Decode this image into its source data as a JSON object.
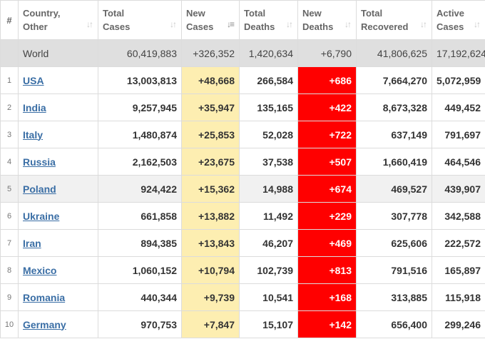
{
  "table": {
    "headers": {
      "num": "#",
      "country": [
        "Country,",
        "Other"
      ],
      "total_cases": [
        "Total",
        "Cases"
      ],
      "new_cases": [
        "New",
        "Cases"
      ],
      "total_deaths": [
        "Total",
        "Deaths"
      ],
      "new_deaths": [
        "New",
        "Deaths"
      ],
      "total_recovered": [
        "Total",
        "Recovered"
      ],
      "active_cases": [
        "Active",
        "Cases"
      ]
    },
    "sorted_column": "new_cases",
    "world": {
      "country": "World",
      "total_cases": "60,419,883",
      "new_cases": "+326,352",
      "total_deaths": "1,420,634",
      "new_deaths": "+6,790",
      "total_recovered": "41,806,625",
      "active_cases": "17,192,624"
    },
    "rows": [
      {
        "rank": "1",
        "country": "USA",
        "total_cases": "13,003,813",
        "new_cases": "+48,668",
        "total_deaths": "266,584",
        "new_deaths": "+686",
        "total_recovered": "7,664,270",
        "active_cases": "5,072,959"
      },
      {
        "rank": "2",
        "country": "India",
        "total_cases": "9,257,945",
        "new_cases": "+35,947",
        "total_deaths": "135,165",
        "new_deaths": "+422",
        "total_recovered": "8,673,328",
        "active_cases": "449,452"
      },
      {
        "rank": "3",
        "country": "Italy",
        "total_cases": "1,480,874",
        "new_cases": "+25,853",
        "total_deaths": "52,028",
        "new_deaths": "+722",
        "total_recovered": "637,149",
        "active_cases": "791,697"
      },
      {
        "rank": "4",
        "country": "Russia",
        "total_cases": "2,162,503",
        "new_cases": "+23,675",
        "total_deaths": "37,538",
        "new_deaths": "+507",
        "total_recovered": "1,660,419",
        "active_cases": "464,546"
      },
      {
        "rank": "5",
        "country": "Poland",
        "total_cases": "924,422",
        "new_cases": "+15,362",
        "total_deaths": "14,988",
        "new_deaths": "+674",
        "total_recovered": "469,527",
        "active_cases": "439,907"
      },
      {
        "rank": "6",
        "country": "Ukraine",
        "total_cases": "661,858",
        "new_cases": "+13,882",
        "total_deaths": "11,492",
        "new_deaths": "+229",
        "total_recovered": "307,778",
        "active_cases": "342,588"
      },
      {
        "rank": "7",
        "country": "Iran",
        "total_cases": "894,385",
        "new_cases": "+13,843",
        "total_deaths": "46,207",
        "new_deaths": "+469",
        "total_recovered": "625,606",
        "active_cases": "222,572"
      },
      {
        "rank": "8",
        "country": "Mexico",
        "total_cases": "1,060,152",
        "new_cases": "+10,794",
        "total_deaths": "102,739",
        "new_deaths": "+813",
        "total_recovered": "791,516",
        "active_cases": "165,897"
      },
      {
        "rank": "9",
        "country": "Romania",
        "total_cases": "440,344",
        "new_cases": "+9,739",
        "total_deaths": "10,541",
        "new_deaths": "+168",
        "total_recovered": "313,885",
        "active_cases": "115,918"
      },
      {
        "rank": "10",
        "country": "Germany",
        "total_cases": "970,753",
        "new_cases": "+7,847",
        "total_deaths": "15,107",
        "new_deaths": "+142",
        "total_recovered": "656,400",
        "active_cases": "299,246"
      }
    ]
  },
  "colors": {
    "new_cases_bg": "#fdeeb1",
    "new_deaths_bg": "#ff0000",
    "world_row_bg": "#dfdfdf",
    "link": "#3a6ea5"
  },
  "icons": {
    "sort": "sort-updown-icon",
    "sort_active": "sort-descending-icon"
  }
}
